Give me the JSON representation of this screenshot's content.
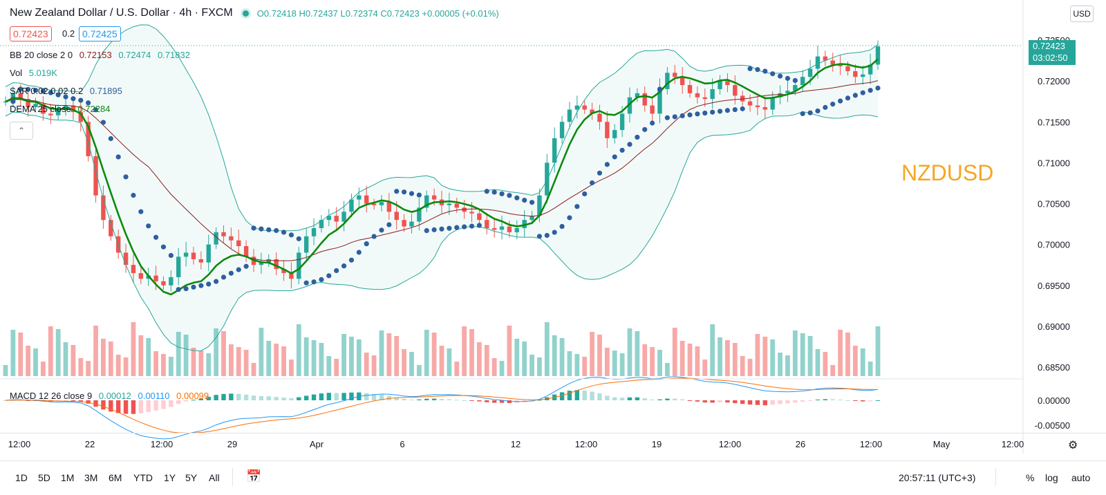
{
  "header": {
    "symbol": "New Zealand Dollar / U.S. Dollar · 4h · FXCM",
    "open": "O0.72418",
    "high": "H0.72437",
    "low": "L0.72374",
    "close": "C0.72423",
    "change": "+0.00005 (+0.01%)"
  },
  "bid_box": "0.72423",
  "spread_box": "0.2",
  "ask_box": "0.72425",
  "indicators": {
    "bb": {
      "name": "BB 20 close 2 0",
      "basis": "0.72153",
      "upper": "0.72474",
      "lower": "0.71832"
    },
    "vol": {
      "name": "Vol",
      "value": "5.019K"
    },
    "sar": {
      "name": "SAR 0.02 0.02 0.2",
      "value": "0.71895"
    },
    "dema": {
      "name": "DEMA 25 close",
      "value": "0.72284"
    },
    "macd": {
      "name": "MACD 12 26 close 9",
      "hist": "0.00012",
      "macd": "0.00110",
      "signal": "0.00099"
    }
  },
  "watermark": "NZDUSD",
  "currency_button": "USD",
  "price_tag": {
    "price": "0.72423",
    "countdown": "03:02:50"
  },
  "price_axis": [
    "0.72500",
    "0.72000",
    "0.71500",
    "0.71000",
    "0.70500",
    "0.70000",
    "0.69500",
    "0.69000",
    "0.68500"
  ],
  "macd_axis": [
    "0.00000",
    "-0.00500"
  ],
  "time_axis": [
    "12:00",
    "22",
    "12:00",
    "29",
    "Apr",
    "6",
    "12",
    "12:00",
    "19",
    "12:00",
    "26",
    "12:00",
    "May",
    "12:00"
  ],
  "range_buttons": [
    "1D",
    "5D",
    "1M",
    "3M",
    "6M",
    "YTD",
    "1Y",
    "5Y",
    "All"
  ],
  "clock": "20:57:11 (UTC+3)",
  "scale_options": [
    "%",
    "log",
    "auto"
  ],
  "colors": {
    "up": "#26a69a",
    "down": "#ef5350",
    "dema": "#0b8a0b",
    "sar": "#2f5f9e",
    "bb": "#26a69a",
    "basis": "#8b1a1a",
    "macd": "#2196f3",
    "signal": "#ff6d00",
    "watermark": "#f5a623"
  },
  "chart_data": {
    "type": "candlestick",
    "interval": "4h",
    "close_path": [
      0.7175,
      0.7185,
      0.7178,
      0.7168,
      0.7172,
      0.716,
      0.7158,
      0.7165,
      0.717,
      0.7162,
      0.715,
      0.7108,
      0.706,
      0.703,
      0.701,
      0.699,
      0.6975,
      0.6965,
      0.6958,
      0.6962,
      0.6955,
      0.695,
      0.696,
      0.6985,
      0.699,
      0.6982,
      0.6978,
      0.7,
      0.7015,
      0.701,
      0.7005,
      0.6998,
      0.6985,
      0.6975,
      0.6978,
      0.6982,
      0.697,
      0.6965,
      0.6958,
      0.699,
      0.701,
      0.702,
      0.703,
      0.7035,
      0.7028,
      0.704,
      0.7055,
      0.706,
      0.705,
      0.7048,
      0.7052,
      0.704,
      0.703,
      0.7022,
      0.7028,
      0.7045,
      0.706,
      0.7055,
      0.7048,
      0.705,
      0.7045,
      0.704,
      0.7038,
      0.703,
      0.702,
      0.7018,
      0.7022,
      0.7015,
      0.702,
      0.703,
      0.7035,
      0.706,
      0.71,
      0.713,
      0.715,
      0.7165,
      0.717,
      0.7165,
      0.716,
      0.715,
      0.713,
      0.714,
      0.716,
      0.718,
      0.7185,
      0.717,
      0.716,
      0.719,
      0.721,
      0.7205,
      0.7195,
      0.7185,
      0.718,
      0.7178,
      0.719,
      0.72,
      0.7195,
      0.7182,
      0.7175,
      0.717,
      0.7168,
      0.7165,
      0.718,
      0.7185,
      0.7188,
      0.7195,
      0.7205,
      0.7215,
      0.723,
      0.7225,
      0.722,
      0.7218,
      0.7212,
      0.7205,
      0.7208,
      0.722,
      0.72423
    ],
    "axis_range": [
      0.6835,
      0.7258
    ],
    "macd_range": [
      -0.0068,
      0.0023
    ]
  }
}
